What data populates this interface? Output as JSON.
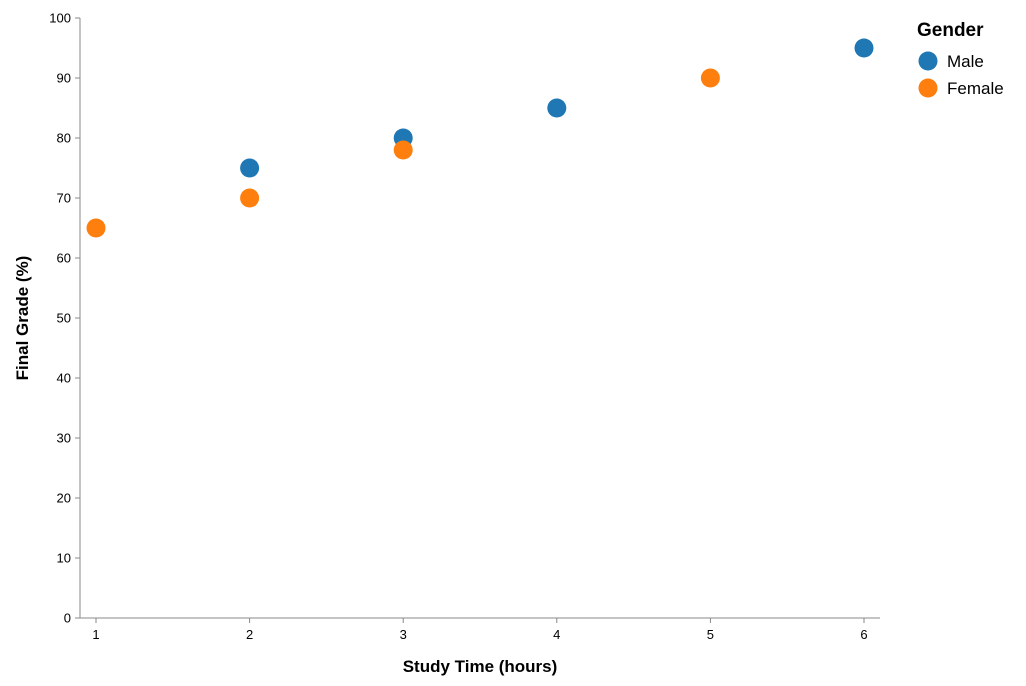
{
  "chart_data": {
    "type": "scatter",
    "xlabel": "Study Time (hours)",
    "ylabel": "Final Grade (%)",
    "xlim": [
      1,
      6
    ],
    "ylim": [
      0,
      100
    ],
    "x_ticks": [
      1,
      2,
      3,
      4,
      5,
      6
    ],
    "y_ticks": [
      0,
      10,
      20,
      30,
      40,
      50,
      60,
      70,
      80,
      90,
      100
    ],
    "grid": false,
    "legend": {
      "title": "Gender",
      "placement": "top-right"
    },
    "series": [
      {
        "name": "Male",
        "color": "#1f77b4",
        "points": [
          {
            "x": 2,
            "y": 75
          },
          {
            "x": 3,
            "y": 80
          },
          {
            "x": 4,
            "y": 85
          },
          {
            "x": 6,
            "y": 95
          }
        ]
      },
      {
        "name": "Female",
        "color": "#ff7f0e",
        "points": [
          {
            "x": 1,
            "y": 65
          },
          {
            "x": 2,
            "y": 70
          },
          {
            "x": 3,
            "y": 78
          },
          {
            "x": 5,
            "y": 90
          }
        ]
      }
    ]
  }
}
